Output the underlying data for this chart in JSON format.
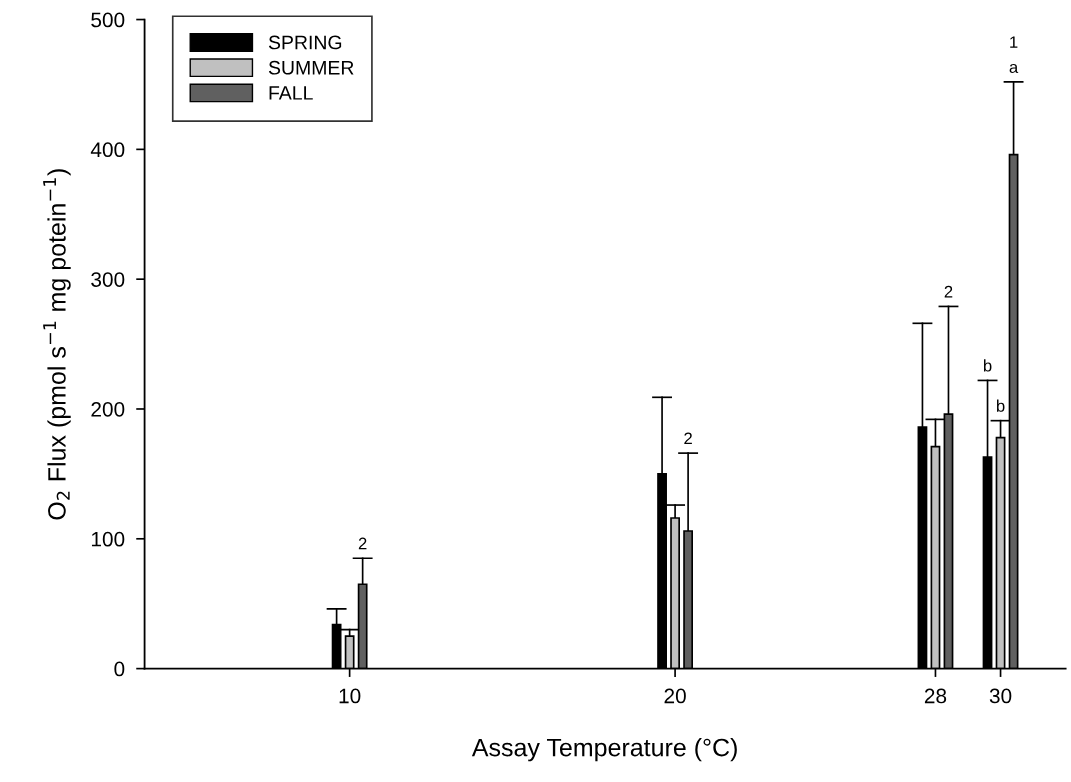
{
  "chart_data": {
    "type": "bar",
    "xlabel": "Assay Temperature (°C)",
    "ylabel": "O$_{2}$ Flux (pmol s$^{−1}$ mg potein$^{−1}$)",
    "x": [
      10,
      20,
      28,
      30
    ],
    "xlim": [
      3.7,
      32
    ],
    "xticks": [
      10,
      20,
      28,
      30
    ],
    "ylim": [
      0,
      500
    ],
    "yticks": [
      0,
      100,
      200,
      300,
      400,
      500
    ],
    "series": [
      {
        "name": "SPRING",
        "color": "#000000",
        "values": [
          34,
          150,
          186,
          163
        ],
        "errors": [
          [
            34,
            46
          ],
          [
            150,
            209
          ],
          [
            186,
            266
          ],
          [
            163,
            222
          ]
        ]
      },
      {
        "name": "SUMMER",
        "color": "#c0c0c0",
        "values": [
          25,
          116,
          171,
          178
        ],
        "errors": [
          [
            25,
            30
          ],
          [
            116,
            126
          ],
          [
            171,
            192
          ],
          [
            178,
            191
          ]
        ]
      },
      {
        "name": "FALL",
        "color": "#606060",
        "values": [
          65,
          106,
          196,
          396
        ],
        "errors": [
          [
            65,
            85
          ],
          [
            106,
            166
          ],
          [
            196,
            279
          ],
          [
            396,
            452
          ]
        ]
      }
    ],
    "annotations": [
      {
        "text": "2",
        "x": 10.4,
        "y": 85
      },
      {
        "text": "2",
        "x": 20.4,
        "y": 166
      },
      {
        "text": "2",
        "x": 28.4,
        "y": 279
      },
      {
        "text": "b",
        "x": 29.6,
        "y": 222
      },
      {
        "text": "b",
        "x": 30.0,
        "y": 191
      },
      {
        "text": "a",
        "x": 30.4,
        "y": 452
      },
      {
        "text": "1",
        "x": 30.4,
        "y": 452
      }
    ],
    "legend": "top left",
    "grid": false
  }
}
